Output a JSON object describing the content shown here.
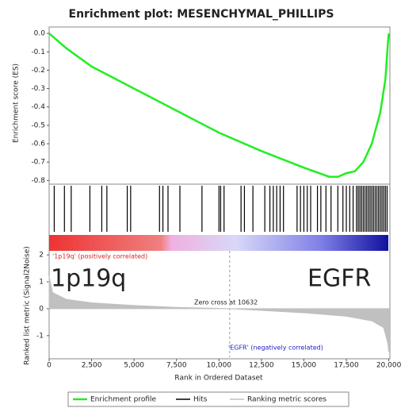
{
  "chart_data": {
    "type": "line",
    "title": "Enrichment plot: MESENCHYMAL_PHILLIPS",
    "x_label": "Rank in Ordered Dataset",
    "xlim": [
      0,
      20300
    ],
    "xticks": [
      0,
      {
        "value": 2500,
        "label": "2,500"
      },
      {
        "value": 5000,
        "label": "5,000"
      },
      {
        "value": 7500,
        "label": "7,500"
      },
      {
        "value": 10000,
        "label": "10,000"
      },
      {
        "value": 12500,
        "label": "12,500"
      },
      {
        "value": 15000,
        "label": "15,000"
      },
      {
        "value": 17500,
        "label": "17,500"
      },
      {
        "value": 20000,
        "label": "20,000"
      }
    ],
    "ylabel": "Enrichment score (ES)",
    "ylim": [
      -0.82,
      0.035
    ],
    "yticks": [
      {
        "value": 0,
        "label": "0.0"
      },
      -0.1,
      -0.2,
      -0.3,
      -0.4,
      -0.5,
      -0.6,
      -0.7,
      -0.8
    ],
    "y2label": "Ranked list metric (Signal2Noise)",
    "y2lim": [
      -1.8,
      2.15
    ],
    "y2ticks": [
      2,
      1,
      0,
      -1
    ],
    "zero_cross": 10632,
    "series": [
      {
        "name": "Enrichment profile",
        "color": "#22ee22",
        "x": [
          0,
          1000,
          2500,
          5000,
          7500,
          10000,
          12500,
          15000,
          16500,
          17000,
          17500,
          18000,
          18500,
          19000,
          19500,
          19800,
          19950,
          20000
        ],
        "values": [
          0,
          -0.08,
          -0.18,
          -0.3,
          -0.42,
          -0.54,
          -0.64,
          -0.73,
          -0.78,
          -0.78,
          -0.76,
          -0.75,
          -0.7,
          -0.6,
          -0.43,
          -0.25,
          -0.05,
          0
        ]
      },
      {
        "name": "Hits",
        "color": "#000000",
        "x": [
          300,
          900,
          1300,
          2400,
          3100,
          3400,
          4600,
          4800,
          6500,
          6700,
          7000,
          7700,
          9000,
          10000,
          10100,
          10300,
          11300,
          11500,
          12000,
          12700,
          13000,
          13200,
          13400,
          13600,
          13800,
          14600,
          14800,
          15000,
          15200,
          15400,
          15800,
          16000,
          16300,
          16600,
          17000,
          17300,
          17500,
          17700,
          17900,
          18100,
          18200,
          18300,
          18400,
          18500,
          18600,
          18700,
          18800,
          18900,
          19000,
          19100,
          19200,
          19300,
          19400,
          19500,
          19600,
          19700,
          19800,
          19900
        ]
      },
      {
        "name": "Ranking metric scores",
        "color": "#c0c0c0",
        "axis": "y2",
        "x": [
          0,
          200,
          1000,
          2500,
          5000,
          7500,
          10632,
          12500,
          15000,
          17500,
          19000,
          19700,
          19950,
          20000
        ],
        "values": [
          1.2,
          0.6,
          0.35,
          0.22,
          0.12,
          0.05,
          0,
          -0.06,
          -0.15,
          -0.28,
          -0.45,
          -0.7,
          -1.3,
          -1.6
        ]
      }
    ],
    "annotations": [
      "'1p19q' (positively correlated)",
      "'EGFR' (negatively correlated)",
      "Zero cross at 10632",
      "1p19q",
      "EGFR"
    ]
  }
}
